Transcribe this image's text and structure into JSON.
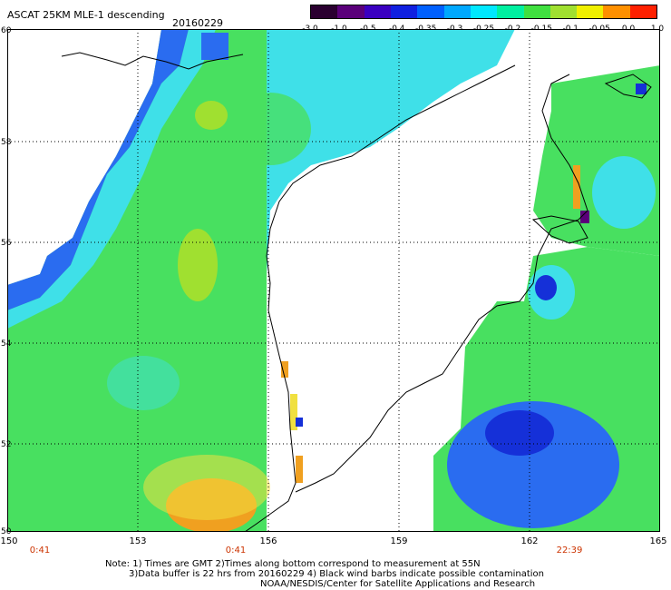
{
  "title": "ASCAT 25KM MLE-1 descending",
  "date": "20160229",
  "colorbar": {
    "labels": [
      "-3.0",
      "-1.0",
      "-0.5",
      "-0.4",
      "-0.35",
      "-0.3",
      "-0.25",
      "-0.2",
      "-0.15",
      "-0.1",
      "-0.05",
      "0.0",
      "1.0"
    ],
    "colors": [
      "#2a0030",
      "#5a007a",
      "#3a00c0",
      "#1020e0",
      "#0060ff",
      "#00a8ff",
      "#00e8ff",
      "#00f0a0",
      "#40e040",
      "#a0e030",
      "#f0f000",
      "#ff9000",
      "#ff2000"
    ]
  },
  "axes": {
    "lat_labels": [
      "60",
      "58",
      "56",
      "54",
      "52",
      "50"
    ],
    "lon_labels": [
      "150",
      "153",
      "156",
      "159",
      "162",
      "165"
    ]
  },
  "pass_times": [
    "0:41",
    "0:41",
    "22:39"
  ],
  "notes": {
    "line1": "Note: 1) Times are GMT 2)Times along bottom correspond to measurement at 55N",
    "line2": "3)Data buffer is 22 hrs from 20160229 4) Black wind barbs indicate possible contamination",
    "line3": "NOAA/NESDIS/Center for Satellite Applications and Research"
  },
  "map": {
    "region": "Sea of Okhotsk / Kamchatka",
    "colors": {
      "background": "#ffffff",
      "coast": "#000000",
      "grid": "#000000",
      "blue": "#2a6cf0",
      "cyan": "#3fe0e8",
      "green": "#48e060",
      "yellow": "#f0e040",
      "orange": "#f0a020",
      "darkblue": "#1530d8"
    }
  }
}
